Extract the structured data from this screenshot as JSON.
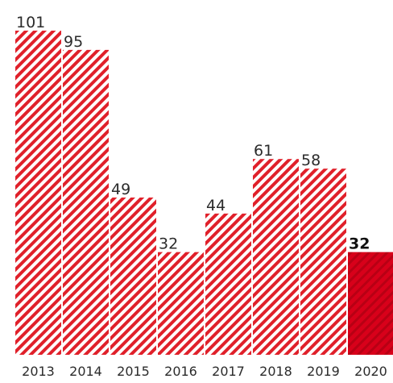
{
  "colors": {
    "hatch": "#e0202a",
    "highlight": "#d8001a",
    "text": "#2b2b2b"
  },
  "chart_data": {
    "type": "bar",
    "title": "",
    "xlabel": "",
    "ylabel": "",
    "categories": [
      "2013",
      "2014",
      "2015",
      "2016",
      "2017",
      "2018",
      "2019",
      "2020"
    ],
    "values": [
      101,
      95,
      49,
      32,
      44,
      61,
      58,
      32
    ],
    "data_labels": [
      "101",
      "95",
      "49",
      "32",
      "44",
      "61",
      "58",
      "32"
    ],
    "highlighted_category": "2020",
    "ylim": [
      0,
      101
    ],
    "grid": false,
    "legend": "none"
  }
}
